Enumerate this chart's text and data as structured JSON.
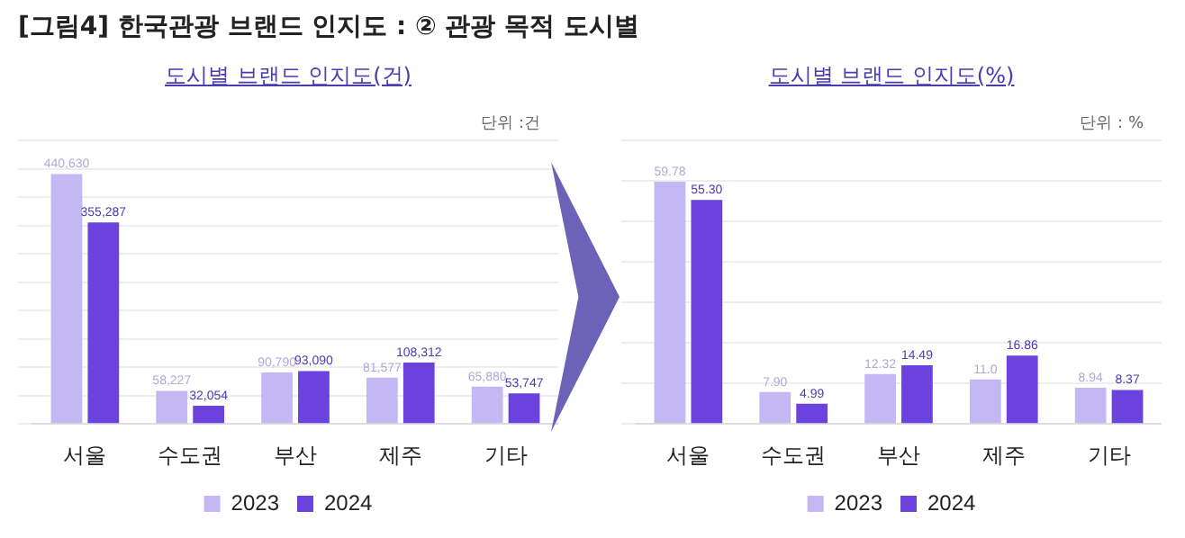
{
  "chart_data": [
    {
      "type": "bar",
      "title": "[그림4] 한국관광 브랜드 인지도 : ② 관광 목적 도시별",
      "subtitle": "도시별 브랜드 인지도(건)",
      "annotations": [
        "단위 :건"
      ],
      "categories": [
        "서울",
        "수도권",
        "부산",
        "제주",
        "기타"
      ],
      "series": [
        {
          "name": "2023",
          "color": "#c4b8f4",
          "values": [
            440630,
            58227,
            90790,
            81577,
            65880
          ],
          "value_labels": [
            "440,630",
            "58,227",
            "90,790",
            "81,577",
            "65,880"
          ]
        },
        {
          "name": "2024",
          "color": "#6b42de",
          "values": [
            355287,
            32054,
            93090,
            108312,
            53747
          ],
          "value_labels": [
            "355,287",
            "32,054",
            "93,090",
            "108,312",
            "53,747"
          ]
        }
      ],
      "grid": "y",
      "legend": "bottom",
      "tick_labels": "x"
    },
    {
      "type": "bar",
      "title": "도시별 브랜드 인지도(%)",
      "annotations": [
        "단위 : %"
      ],
      "categories": [
        "서울",
        "수도권",
        "부산",
        "제주",
        "기타"
      ],
      "series": [
        {
          "name": "2023",
          "color": "#c4b8f4",
          "values": [
            59.78,
            7.9,
            12.32,
            11.0,
            8.94
          ],
          "value_labels": [
            "59.78",
            "7.90",
            "12.32",
            "11.0",
            "8.94"
          ]
        },
        {
          "name": "2024",
          "color": "#6b42de",
          "values": [
            55.3,
            4.99,
            14.49,
            16.86,
            8.37
          ],
          "value_labels": [
            "55.30",
            "4.99",
            "14.49",
            "16.86",
            "8.37"
          ]
        }
      ],
      "grid": "y",
      "legend": "bottom",
      "tick_labels": "x"
    }
  ]
}
